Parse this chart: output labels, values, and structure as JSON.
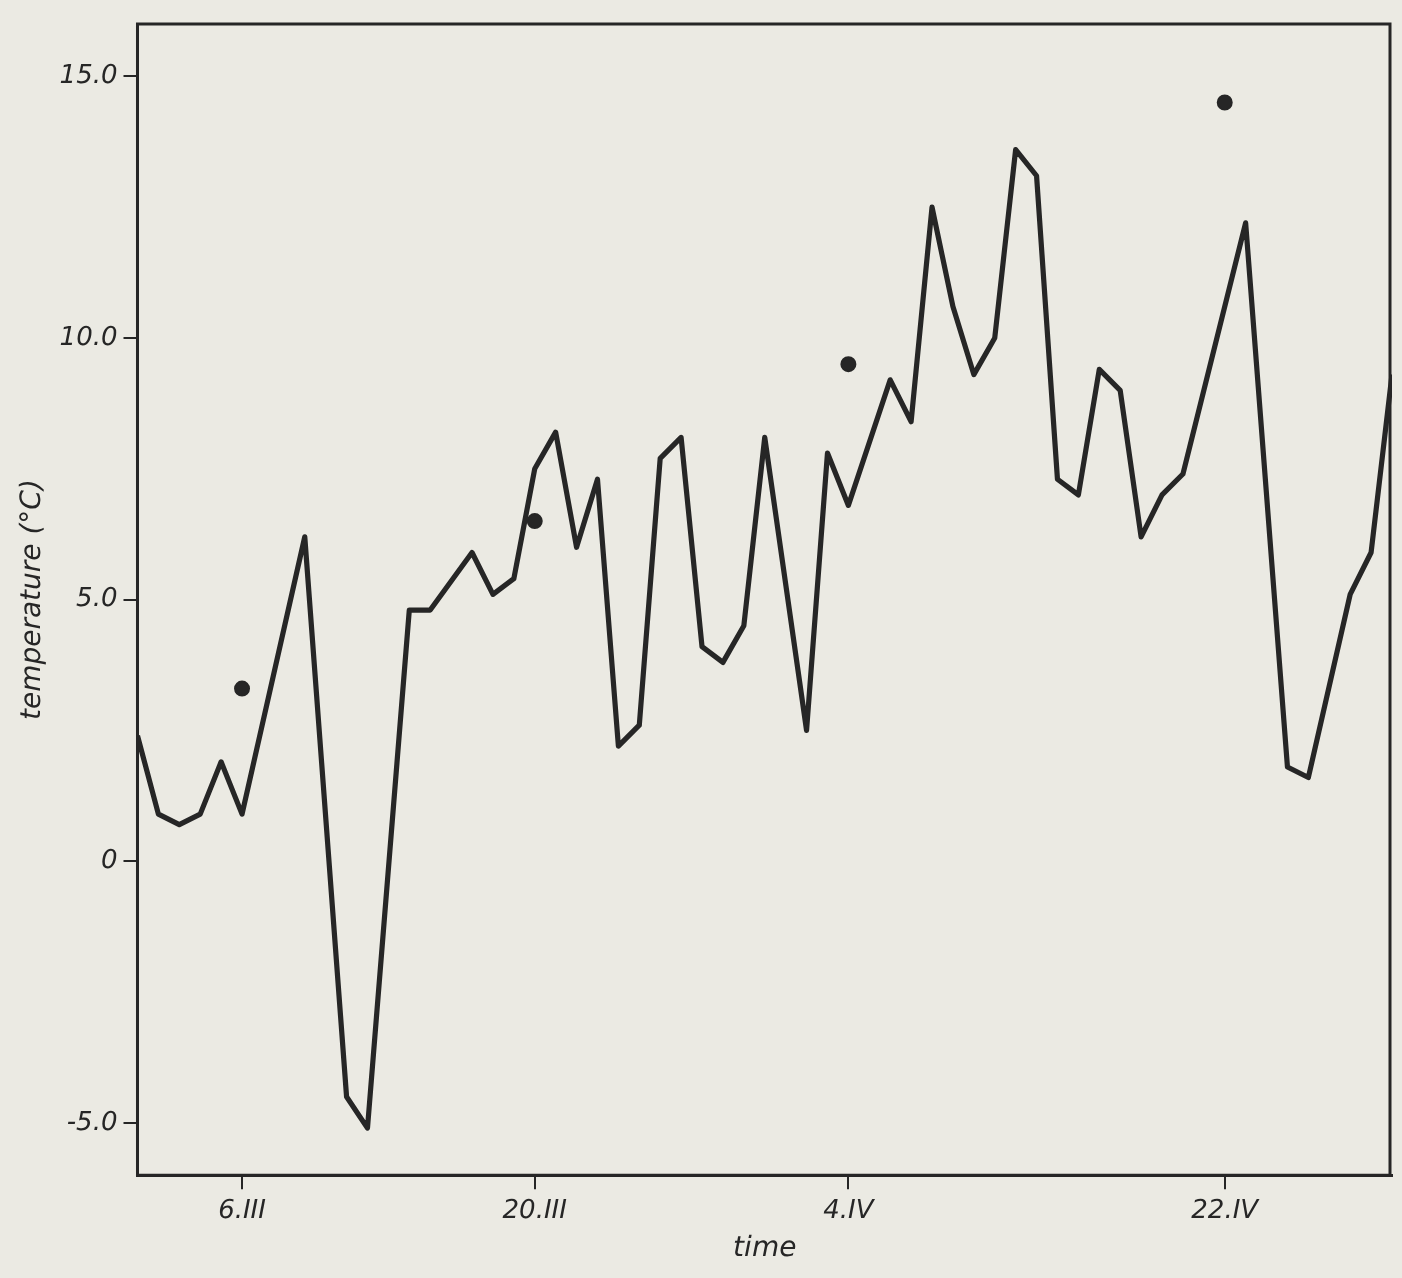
{
  "chart_data": {
    "type": "line",
    "xlabel": "time",
    "ylabel": "temperature (°C)",
    "xlim": [
      "--03-01",
      "--04-30"
    ],
    "xticks": [
      {
        "value": "--03-06",
        "label": "6.III"
      },
      {
        "value": "--03-20",
        "label": "20.III"
      },
      {
        "value": "--04-04",
        "label": "4.IV"
      },
      {
        "value": "--04-22",
        "label": "22.IV"
      }
    ],
    "ylim": [
      -6,
      16
    ],
    "yticks": [
      {
        "value": -5,
        "label": "-5.0"
      },
      0,
      {
        "value": 5,
        "label": "5.0"
      },
      {
        "value": 10,
        "label": "10.0"
      },
      {
        "value": 15,
        "label": "15.0"
      }
    ],
    "grid": false,
    "legend": false,
    "series": [
      {
        "type": "line",
        "color": "#262626",
        "marker": "none",
        "line_style": "solid",
        "x": [
          "--03-01",
          "--03-02",
          "--03-03",
          "--03-04",
          "--03-05",
          "--03-06",
          "--03-09",
          "--03-11",
          "--03-12",
          "--03-14",
          "--03-15",
          "--03-17",
          "--03-18",
          "--03-19",
          "--03-20",
          "--03-21",
          "--03-22",
          "--03-23",
          "--03-24",
          "--03-25",
          "--03-26",
          "--03-27",
          "--03-28",
          "--03-29",
          "--03-30",
          "--03-31",
          "--04-02",
          "--04-03",
          "--04-04",
          "--04-06",
          "--04-07",
          "--04-08",
          "--04-09",
          "--04-10",
          "--04-11",
          "--04-12",
          "--04-13",
          "--04-14",
          "--04-15",
          "--04-16",
          "--04-17",
          "--04-18",
          "--04-19",
          "--04-20",
          "--04-23",
          "--04-25",
          "--04-26",
          "--04-28",
          "--04-29",
          "--04-30"
        ],
        "values": [
          2.4,
          0.9,
          0.7,
          0.9,
          1.9,
          0.9,
          6.2,
          -4.5,
          -5.1,
          4.8,
          4.8,
          5.9,
          5.1,
          5.4,
          7.5,
          8.2,
          6.0,
          7.3,
          2.2,
          2.6,
          7.7,
          8.1,
          4.1,
          3.8,
          4.5,
          8.1,
          2.5,
          7.8,
          6.8,
          9.2,
          8.4,
          12.5,
          10.6,
          9.3,
          10.0,
          13.6,
          13.1,
          7.3,
          7.0,
          9.4,
          9.0,
          6.2,
          7.0,
          7.4,
          12.2,
          1.8,
          1.6,
          5.1,
          5.9,
          9.3
        ]
      },
      {
        "type": "scatter",
        "color": "#262626",
        "marker": "circle",
        "x": [
          "--03-06",
          "--03-20",
          "--04-04",
          "--04-22"
        ],
        "values": [
          3.3,
          6.5,
          9.5,
          14.5
        ]
      }
    ]
  }
}
